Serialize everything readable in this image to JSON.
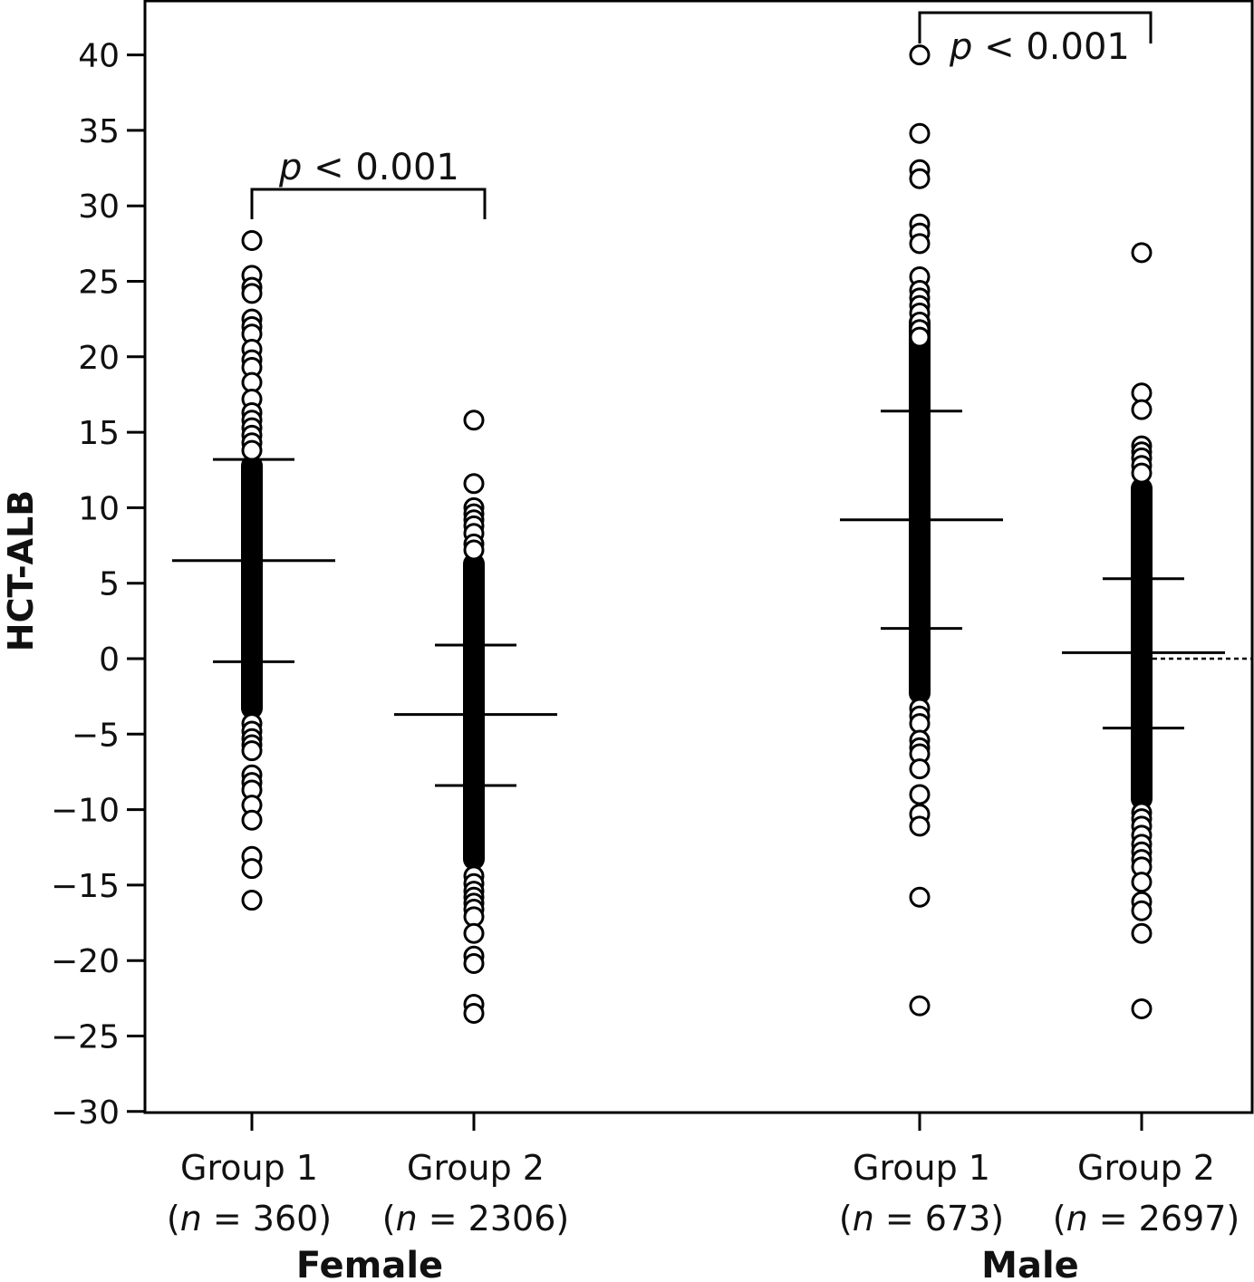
{
  "chart_data": {
    "type": "scatter",
    "ylabel": "HCT-ALB",
    "ylim": [
      -30,
      40
    ],
    "yticks": [
      40,
      35,
      30,
      25,
      20,
      15,
      10,
      5,
      0,
      -5,
      -10,
      -15,
      -20,
      -25,
      -30
    ],
    "ytick_labels": [
      "40",
      "35",
      "30",
      "25",
      "20",
      "15",
      "10",
      "5",
      "0",
      "−5",
      "−10",
      "−15",
      "−20",
      "−25",
      "−30"
    ],
    "grid": false,
    "reference_line": {
      "y": 0,
      "style": "dotted",
      "span": "male-group2-right"
    },
    "panels": [
      {
        "sex": "Female",
        "comparison": {
          "p_prefix": "p",
          "p_rest": " < 0.001"
        },
        "groups": [
          {
            "label": "Group 1",
            "n_prefix": "(",
            "n_var": "n",
            "n_rest": " = 360)",
            "mean": 6.5,
            "sd_upper": 13.2,
            "sd_lower": -0.2,
            "dense_range": [
              -4,
              13.5
            ],
            "outliers": [
              27.7,
              25.4,
              24.6,
              24.2,
              22.5,
              22.0,
              21.5,
              20.5,
              19.8,
              19.3,
              18.3,
              17.2,
              16.3,
              15.8,
              15.3,
              14.8,
              14.3,
              13.8,
              -4.3,
              -4.8,
              -5.3,
              -5.7,
              -6.1,
              -7.7,
              -8.2,
              -8.7,
              -9.7,
              -10.7,
              -13.1,
              -13.9,
              -16.0
            ]
          },
          {
            "label": "Group 2",
            "n_prefix": "(",
            "n_var": "n",
            "n_rest": " = 2306)",
            "mean": -3.7,
            "sd_upper": 0.9,
            "sd_lower": -8.4,
            "dense_range": [
              -14,
              7
            ],
            "outliers": [
              15.8,
              11.6,
              10.0,
              9.6,
              9.2,
              8.8,
              8.3,
              7.6,
              7.2,
              -14.4,
              -14.9,
              -15.4,
              -15.8,
              -16.2,
              -16.6,
              -17.1,
              -18.2,
              -19.7,
              -20.2,
              -22.9,
              -23.5
            ]
          }
        ]
      },
      {
        "sex": "Male",
        "comparison": {
          "p_prefix": "p",
          "p_rest": " < 0.001"
        },
        "groups": [
          {
            "label": "Group 1",
            "n_prefix": "(",
            "n_var": "n",
            "n_rest": " = 673)",
            "mean": 9.2,
            "sd_upper": 16.4,
            "sd_lower": 2.0,
            "dense_range": [
              -3,
              23
            ],
            "outliers": [
              40.0,
              34.8,
              32.4,
              31.8,
              28.8,
              28.2,
              27.5,
              25.3,
              24.4,
              23.9,
              23.4,
              22.9,
              22.3,
              21.8,
              21.3,
              -3.3,
              -3.8,
              -4.3,
              -5.4,
              -5.9,
              -6.3,
              -7.3,
              -9.0,
              -10.3,
              -11.1,
              -15.8,
              -23.0
            ]
          },
          {
            "label": "Group 2",
            "n_prefix": "(",
            "n_var": "n",
            "n_rest": " = 2697)",
            "mean": 0.4,
            "sd_upper": 5.3,
            "sd_lower": -4.6,
            "dense_range": [
              -10,
              12
            ],
            "outliers": [
              26.9,
              17.6,
              16.5,
              14.1,
              13.7,
              13.3,
              12.8,
              12.3,
              -10.2,
              -10.6,
              -11.1,
              -11.7,
              -12.3,
              -12.8,
              -13.3,
              -13.8,
              -14.8,
              -16.1,
              -16.7,
              -18.2,
              -23.2
            ]
          }
        ]
      }
    ]
  }
}
